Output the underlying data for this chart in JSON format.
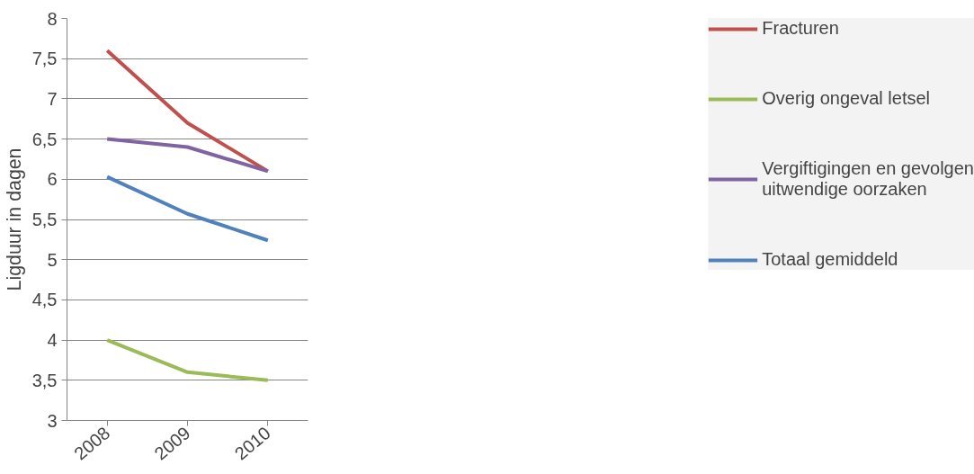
{
  "chart_data": {
    "type": "line",
    "ylabel": "Ligduur in dagen",
    "categories": [
      "2008",
      "2009",
      "2010"
    ],
    "series": [
      {
        "name": "Fracturen",
        "color": "#c0504d",
        "values": [
          7.6,
          6.7,
          6.1
        ]
      },
      {
        "name": "Overig ongeval letsel",
        "color": "#9bbb59",
        "values": [
          4.0,
          3.6,
          3.5
        ]
      },
      {
        "name": "Vergiftigingen en gevolgen uitwendige oorzaken",
        "color": "#8064a2",
        "values": [
          6.5,
          6.4,
          6.1
        ]
      },
      {
        "name": "Totaal gemiddeld",
        "color": "#4f81bd",
        "values": [
          6.03,
          5.57,
          5.24
        ]
      }
    ],
    "ylim": [
      3,
      8
    ],
    "yticks": [
      3,
      {
        "value": 3.5,
        "label": "3,5"
      },
      4,
      {
        "value": 4.5,
        "label": "4,5"
      },
      5,
      {
        "value": 5.5,
        "label": "5,5"
      },
      6,
      {
        "value": 6.5,
        "label": "6,5"
      },
      7,
      {
        "value": 7.5,
        "label": "7,5"
      },
      8
    ],
    "grid": "y",
    "legend": "right",
    "marker": "none",
    "line_style": "solid"
  }
}
